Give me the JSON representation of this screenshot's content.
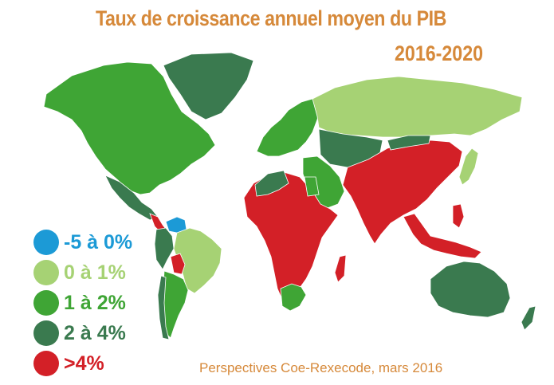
{
  "title": "Taux de croissance annuel moyen du PIB",
  "subtitle": "2016-2020",
  "legend": {
    "items": [
      {
        "label": "-5 à 0%",
        "color": "#1c9ad6"
      },
      {
        "label": "0 à 1%",
        "color": "#a6d274"
      },
      {
        "label": "1 à 2%",
        "color": "#3fa535"
      },
      {
        "label": "2 à 4%",
        "color": "#3a7a4f"
      },
      {
        "label": ">4%",
        "color": "#d32027"
      }
    ]
  },
  "source": "Perspectives Coe-Rexecode, mars 2016",
  "colors": {
    "title": "#d6893a",
    "no_data": "#c8c8c8"
  }
}
